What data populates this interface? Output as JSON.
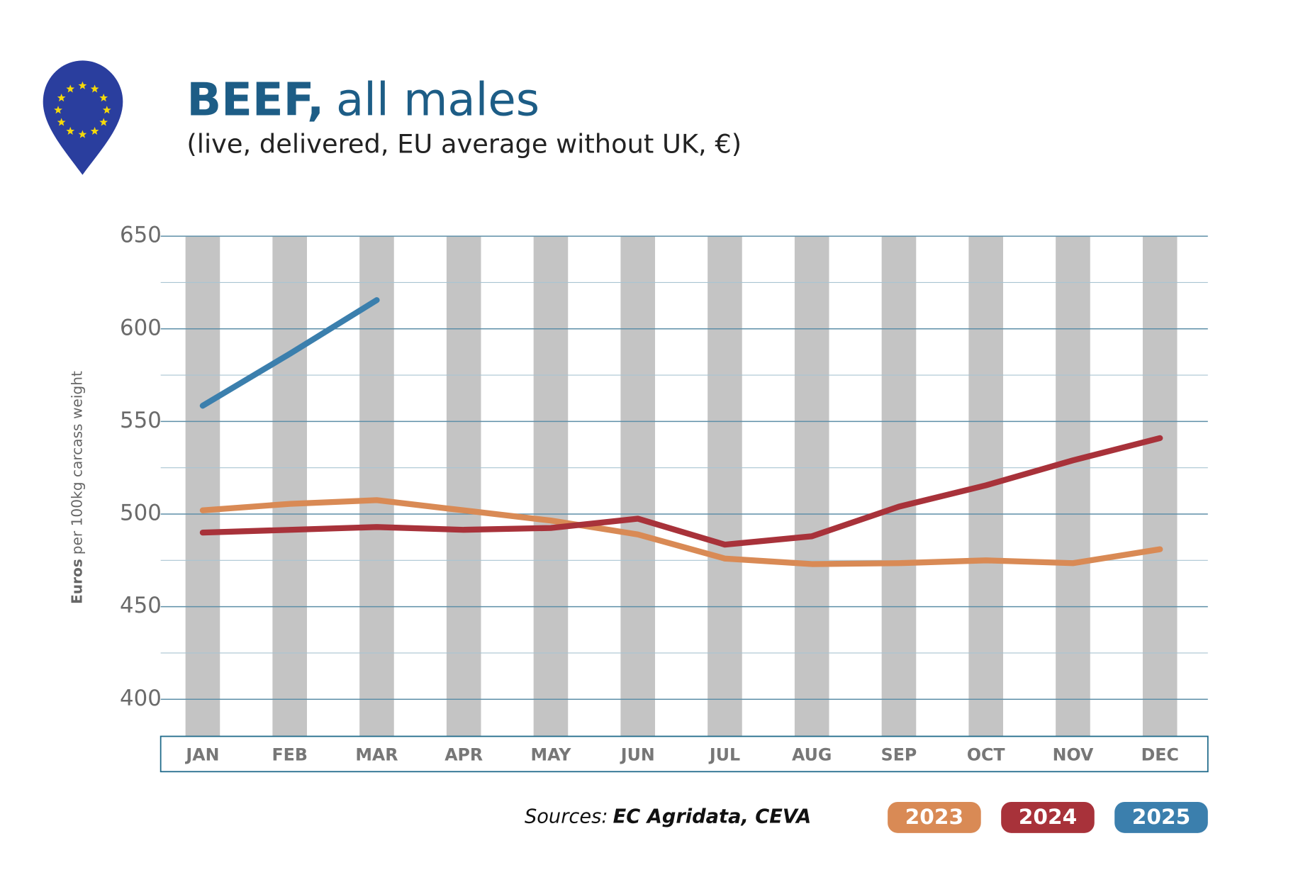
{
  "chart_data": {
    "type": "line",
    "title": "BEEF,",
    "title_rest": "all males",
    "subtitle": "(live, delivered, EU average without UK, €)",
    "y_label": "Euros",
    "y_label_rest": "per 100kg carcass weight",
    "source_label": "Sources:",
    "source": "EC Agridata, CEVA",
    "categories": [
      "JAN",
      "FEB",
      "MAR",
      "APR",
      "MAY",
      "JUN",
      "JUL",
      "AUG",
      "SEP",
      "OCT",
      "NOV",
      "DEC"
    ],
    "series": [
      {
        "name": "2023",
        "color": "#d98a55",
        "values": [
          502,
          505.5,
          507.5,
          502,
          496.5,
          489,
          476,
          473,
          473.5,
          475,
          473.5,
          481
        ]
      },
      {
        "name": "2024",
        "color": "#a8323a",
        "values": [
          490,
          491.5,
          493,
          491.5,
          492.5,
          497.5,
          483.5,
          488,
          504,
          515.5,
          529,
          541
        ]
      },
      {
        "name": "2025",
        "color": "#3b7fad",
        "values": [
          558.5,
          586.5,
          615.5,
          null,
          null,
          null,
          null,
          null,
          null,
          null,
          null,
          null
        ]
      }
    ],
    "ylim": [
      380,
      650
    ],
    "yticks": [
      400,
      450,
      500,
      550,
      600,
      650
    ],
    "y_minor_ticks": [
      425,
      475,
      525,
      575,
      625
    ],
    "grid": true
  }
}
